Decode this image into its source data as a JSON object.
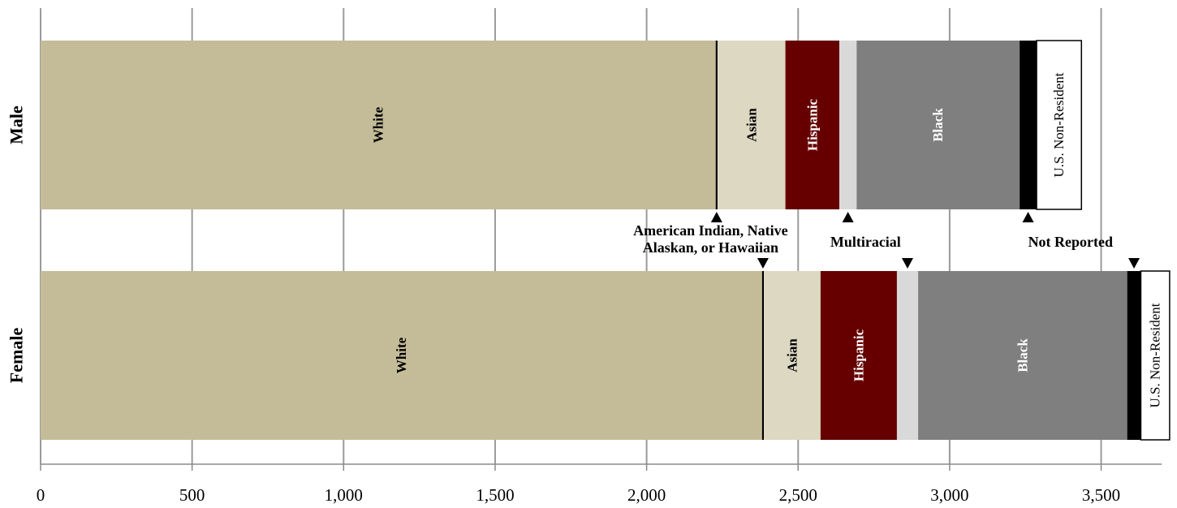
{
  "chart_data": {
    "type": "bar",
    "orientation": "horizontal",
    "stacked": true,
    "categories": [
      "Male",
      "Female"
    ],
    "xlim": [
      0,
      3700
    ],
    "xticks": [
      0,
      500,
      1000,
      1500,
      2000,
      2500,
      3000,
      3500
    ],
    "xtick_labels": [
      "0",
      "500",
      "1,000",
      "1,500",
      "2,000",
      "2,500",
      "3,000",
      "3,500"
    ],
    "grid": true,
    "series": [
      {
        "key": "white",
        "name": "White",
        "color": "#c4bc98",
        "label_color": "#000000",
        "bold": true,
        "values": [
          2228,
          2381
        ]
      },
      {
        "key": "amind",
        "name": "American Indian, Native Alaskan, or Hawaiian",
        "color": "#000000",
        "label_color": "#000000",
        "bold": true,
        "values": [
          6,
          6
        ]
      },
      {
        "key": "asian",
        "name": "Asian",
        "color": "#ddd8c2",
        "label_color": "#000000",
        "bold": true,
        "values": [
          224,
          187
        ]
      },
      {
        "key": "hispanic",
        "name": "Hispanic",
        "color": "#660000",
        "label_color": "#ffffff",
        "bold": true,
        "values": [
          178,
          252
        ]
      },
      {
        "key": "multiracial",
        "name": "Multiracial",
        "color": "#d9d9d9",
        "label_color": "#000000",
        "bold": true,
        "values": [
          57,
          70
        ]
      },
      {
        "key": "black",
        "name": "Black",
        "color": "#7f7f7f",
        "label_color": "#ffffff",
        "bold": true,
        "values": [
          538,
          690
        ]
      },
      {
        "key": "notreported",
        "name": "Not Reported",
        "color": "#000000",
        "label_color": "#000000",
        "bold": true,
        "values": [
          56,
          45
        ]
      },
      {
        "key": "nonresident",
        "name": "U.S. Non-Resident",
        "color": "#ffffff",
        "label_color": "#000000",
        "bold": false,
        "values": [
          148,
          95
        ]
      }
    ],
    "annotations": [
      {
        "series": "amind",
        "text_lines": [
          "American Indian, Native",
          "Alaskan, or Hawaiian"
        ]
      },
      {
        "series": "multiracial",
        "text_lines": [
          "Multiracial"
        ]
      },
      {
        "series": "notreported",
        "text_lines": [
          "Not Reported"
        ]
      }
    ]
  }
}
